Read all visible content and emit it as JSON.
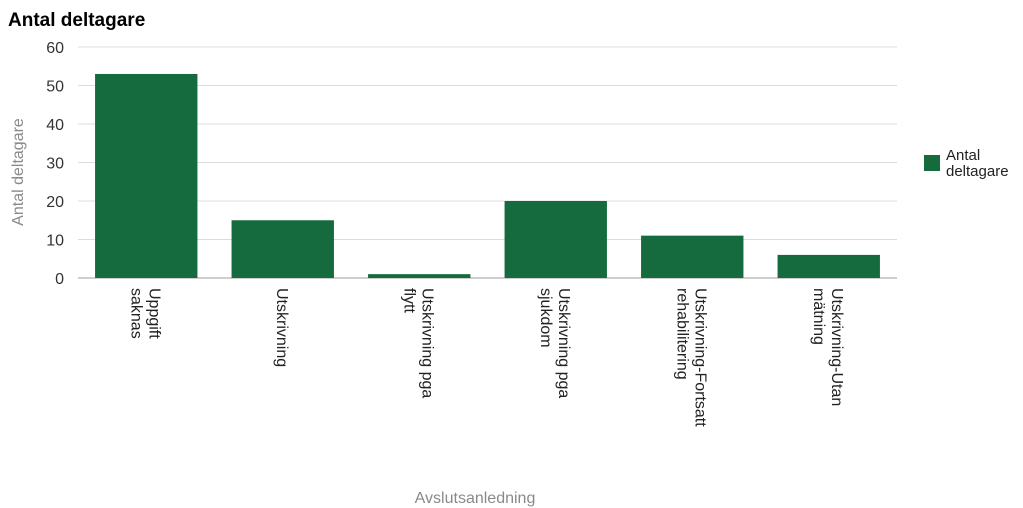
{
  "chart_data": {
    "type": "bar",
    "title": "Antal deltagare",
    "xlabel": "Avslutsanledning",
    "ylabel": "Antal deltagare",
    "ylim": [
      0,
      60
    ],
    "yticks": [
      0,
      10,
      20,
      30,
      40,
      50,
      60
    ],
    "grid": true,
    "legend_position": "right",
    "categories": [
      [
        "Uppgift",
        "saknas"
      ],
      [
        "Utskrivning"
      ],
      [
        "Utskrivning pga",
        "flytt"
      ],
      [
        "Utskrivning pga",
        "sjukdom"
      ],
      [
        "Utskrivning-Fortsatt",
        "rehabilitering"
      ],
      [
        "Utskrivning-Utan",
        "mätning"
      ]
    ],
    "series": [
      {
        "name": [
          "Antal",
          "deltagare"
        ],
        "color": "#166b3e",
        "values": [
          53,
          15,
          1,
          20,
          11,
          6
        ]
      }
    ]
  }
}
